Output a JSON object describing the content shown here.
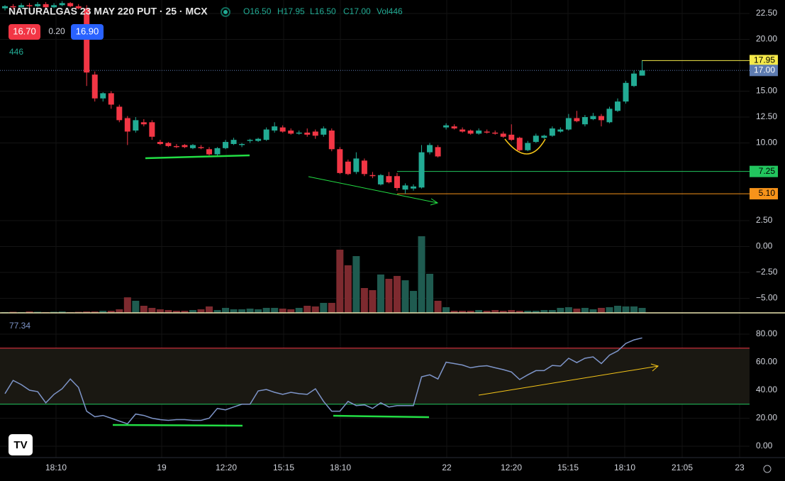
{
  "header": {
    "title": "NATURALGAS 23 MAY 220 PUT · 25 · MCX",
    "ohlc": [
      "O16.50",
      "H17.95",
      "L16.50",
      "C17.00"
    ],
    "volume_label": "Vol446",
    "bid": "16.70",
    "spread": "0.20",
    "ask": "16.90",
    "volume_value": "446"
  },
  "chart_data": {
    "type": "candlestick",
    "up_color": "#22ab94",
    "down_color": "#f23645",
    "volume_up_color": "#1f5b50",
    "volume_down_color": "#7d2a2f",
    "grid": true,
    "ylim": [
      -6.4,
      23.8
    ],
    "yticks": [
      {
        "value": 22.5,
        "label": "22.50"
      },
      {
        "value": 20,
        "label": "20.00"
      },
      {
        "value": 15,
        "label": "15.00"
      },
      {
        "value": 12.5,
        "label": "12.50"
      },
      {
        "value": 10,
        "label": "10.00"
      },
      {
        "value": 2.5,
        "label": "2.50"
      },
      {
        "value": 0,
        "label": "0.00"
      },
      {
        "value": -2.5,
        "label": "−2.50"
      },
      {
        "value": -5,
        "label": "−5.00"
      }
    ],
    "price_lines": [
      {
        "value": 17.95,
        "label": "17.95",
        "color": "#f5e94a"
      },
      {
        "value": 17,
        "label": "17.00",
        "color": "#5d7bb0"
      },
      {
        "value": 7.25,
        "label": "7.25",
        "color": "#22c55e"
      },
      {
        "value": 5.1,
        "label": "5.10",
        "color": "#f7931a"
      }
    ],
    "xtick_labels": [
      "18:10",
      "19",
      "12:20",
      "15:15",
      "18:10",
      "22",
      "12:20",
      "15:15",
      "18:10",
      "21:05",
      "23"
    ],
    "candles": [
      [
        23.0,
        23.3,
        22.8,
        23.2
      ],
      [
        23.2,
        23.4,
        22.9,
        23.1
      ],
      [
        23.1,
        23.5,
        23.0,
        23.3
      ],
      [
        23.3,
        23.5,
        23.0,
        23.2
      ],
      [
        23.2,
        23.6,
        23.1,
        23.4
      ],
      [
        23.4,
        23.6,
        23.0,
        23.1
      ],
      [
        23.1,
        23.5,
        23.0,
        23.3
      ],
      [
        23.3,
        23.7,
        23.2,
        23.5
      ],
      [
        23.5,
        23.6,
        23.1,
        23.2
      ],
      [
        23.2,
        23.4,
        22.9,
        23.0
      ],
      [
        23.0,
        23.3,
        15.5,
        16.8
      ],
      [
        16.6,
        16.9,
        14.0,
        14.3
      ],
      [
        14.3,
        14.9,
        14.0,
        14.8
      ],
      [
        14.8,
        15.0,
        13.3,
        13.7
      ],
      [
        13.5,
        13.7,
        12.0,
        12.2
      ],
      [
        12.4,
        12.6,
        9.8,
        11.1
      ],
      [
        11.2,
        12.5,
        11.0,
        12.2
      ],
      [
        12.0,
        12.3,
        11.6,
        11.8
      ],
      [
        12.0,
        12.2,
        10.3,
        10.6
      ],
      [
        10.1,
        10.3,
        9.8,
        9.9
      ],
      [
        10.0,
        10.1,
        9.6,
        9.7
      ],
      [
        9.7,
        9.9,
        9.5,
        9.6
      ],
      [
        9.8,
        9.9,
        9.5,
        9.6
      ],
      [
        9.5,
        9.9,
        9.4,
        9.8
      ],
      [
        9.6,
        9.8,
        9.4,
        9.5
      ],
      [
        9.4,
        9.6,
        8.8,
        8.9
      ],
      [
        8.9,
        9.6,
        8.8,
        9.5
      ],
      [
        9.5,
        10.3,
        9.4,
        10.1
      ],
      [
        9.9,
        10.5,
        9.8,
        10.3
      ],
      [
        9.8,
        10.0,
        9.6,
        9.9
      ],
      [
        10.2,
        10.4,
        10.0,
        10.3
      ],
      [
        10.2,
        10.5,
        10.1,
        10.4
      ],
      [
        10.3,
        11.5,
        10.2,
        11.3
      ],
      [
        11.2,
        12.0,
        11.0,
        11.6
      ],
      [
        11.5,
        11.7,
        11.0,
        11.1
      ],
      [
        11.2,
        11.4,
        10.8,
        10.9
      ],
      [
        10.9,
        11.2,
        10.8,
        11.0
      ],
      [
        11.0,
        11.4,
        10.6,
        10.8
      ],
      [
        11.1,
        11.3,
        10.4,
        10.7
      ],
      [
        10.8,
        11.6,
        10.6,
        11.4
      ],
      [
        11.2,
        11.4,
        9.2,
        9.4
      ],
      [
        9.4,
        9.6,
        7.0,
        7.1
      ],
      [
        8.2,
        8.4,
        6.9,
        7.0
      ],
      [
        7.2,
        9.1,
        7.0,
        8.5
      ],
      [
        8.3,
        8.5,
        6.8,
        7.0
      ],
      [
        6.9,
        7.2,
        6.6,
        6.8
      ],
      [
        6.0,
        7.0,
        5.9,
        6.9
      ],
      [
        6.8,
        7.2,
        6.1,
        6.2
      ],
      [
        6.8,
        7.1,
        5.4,
        5.65
      ],
      [
        5.5,
        6.1,
        5.1,
        5.9
      ],
      [
        5.6,
        6.0,
        5.4,
        5.8
      ],
      [
        5.7,
        9.8,
        5.6,
        9.1
      ],
      [
        9.1,
        10.0,
        8.9,
        9.8
      ],
      [
        9.6,
        9.8,
        8.6,
        8.7
      ],
      [
        11.5,
        11.9,
        11.3,
        11.7
      ],
      [
        11.6,
        11.8,
        11.3,
        11.4
      ],
      [
        11.3,
        11.5,
        11.0,
        11.1
      ],
      [
        11.2,
        11.3,
        10.8,
        10.9
      ],
      [
        10.9,
        11.4,
        10.8,
        11.2
      ],
      [
        11.1,
        11.3,
        10.9,
        11.0
      ],
      [
        11.0,
        11.2,
        10.8,
        10.9
      ],
      [
        10.9,
        11.1,
        10.5,
        10.6
      ],
      [
        10.8,
        11.8,
        10.2,
        10.3
      ],
      [
        10.5,
        10.6,
        9.2,
        9.3
      ],
      [
        9.3,
        10.2,
        9.2,
        10.0
      ],
      [
        10.1,
        10.9,
        10.0,
        10.7
      ],
      [
        10.5,
        10.8,
        10.4,
        10.7
      ],
      [
        10.7,
        11.6,
        10.6,
        11.4
      ],
      [
        11.1,
        11.5,
        11.0,
        11.3
      ],
      [
        11.3,
        12.8,
        11.2,
        12.4
      ],
      [
        12.4,
        13.1,
        12.0,
        12.1
      ],
      [
        11.8,
        12.7,
        11.6,
        12.5
      ],
      [
        12.3,
        12.9,
        12.2,
        12.6
      ],
      [
        12.6,
        12.8,
        11.6,
        12.2
      ],
      [
        12.0,
        13.5,
        11.9,
        13.3
      ],
      [
        13.1,
        14.3,
        13.0,
        14.0
      ],
      [
        14.0,
        16.0,
        13.8,
        15.8
      ],
      [
        15.5,
        17.0,
        15.4,
        16.7
      ],
      [
        16.5,
        17.95,
        16.5,
        17.0
      ]
    ],
    "volume": [
      64,
      96,
      64,
      128,
      96,
      64,
      96,
      128,
      64,
      96,
      128,
      128,
      190,
      190,
      320,
      1400,
      1090,
      640,
      450,
      320,
      256,
      190,
      190,
      256,
      320,
      580,
      256,
      450,
      320,
      320,
      384,
      320,
      450,
      450,
      384,
      320,
      450,
      640,
      580,
      900,
      900,
      5700,
      4290,
      5120,
      2240,
      2050,
      3460,
      3070,
      3330,
      2940,
      1980,
      6910,
      3520,
      1090,
      510,
      190,
      190,
      190,
      256,
      190,
      256,
      190,
      256,
      190,
      190,
      190,
      256,
      256,
      450,
      510,
      384,
      450,
      320,
      450,
      510,
      640,
      580,
      580,
      446
    ],
    "rsi": {
      "value_label": "77.34",
      "color": "#7e95c9",
      "ylim": [
        -8.1,
        95.2
      ],
      "yticks": [
        {
          "value": 80,
          "label": "80.00"
        },
        {
          "value": 60,
          "label": "60.00"
        },
        {
          "value": 40,
          "label": "40.00"
        },
        {
          "value": 20,
          "label": "20.00"
        },
        {
          "value": 0,
          "label": "0.00"
        }
      ],
      "bands": [
        {
          "value": 70,
          "color": "#f23645"
        },
        {
          "value": 30,
          "color": "#22c55e"
        }
      ],
      "values": [
        37.5,
        47,
        44,
        40,
        39,
        31,
        37,
        41,
        48,
        42,
        25,
        21,
        22,
        20,
        18,
        16,
        23,
        22,
        20,
        19,
        18.5,
        19,
        19,
        18.5,
        18.5,
        20,
        27,
        26,
        28,
        30,
        30,
        39.5,
        40.5,
        38.5,
        37,
        38.5,
        37.5,
        37,
        41,
        32,
        25,
        25,
        32,
        29,
        29.5,
        27,
        31,
        28,
        29,
        29,
        29,
        49.6,
        51,
        48,
        60,
        59,
        58,
        56,
        57,
        57.5,
        56,
        54.7,
        53,
        47.6,
        51,
        54,
        54,
        57.7,
        57.2,
        62.8,
        59.7,
        62.8,
        63.8,
        59,
        65,
        68,
        73.4,
        75.9,
        77.34
      ]
    }
  }
}
